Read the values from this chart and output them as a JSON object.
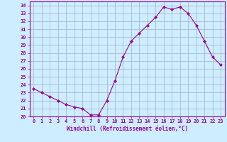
{
  "x": [
    0,
    1,
    2,
    3,
    4,
    5,
    6,
    7,
    8,
    9,
    10,
    11,
    12,
    13,
    14,
    15,
    16,
    17,
    18,
    19,
    20,
    21,
    22,
    23
  ],
  "y": [
    23.5,
    23.0,
    22.5,
    22.0,
    21.5,
    21.2,
    21.0,
    20.2,
    20.2,
    22.0,
    24.5,
    27.5,
    29.5,
    30.5,
    31.5,
    32.5,
    33.8,
    33.5,
    33.8,
    33.0,
    31.5,
    29.5,
    27.5,
    26.5
  ],
  "line_color": "#990099",
  "marker": "D",
  "marker_size": 2,
  "bg_color": "#cceeff",
  "grid_color": "#aaaacc",
  "xlabel": "Windchill (Refroidissement éolien,°C)",
  "ylabel": "",
  "xlim": [
    -0.5,
    23.5
  ],
  "ylim": [
    20,
    34.5
  ],
  "yticks": [
    20,
    21,
    22,
    23,
    24,
    25,
    26,
    27,
    28,
    29,
    30,
    31,
    32,
    33,
    34
  ],
  "xticks": [
    0,
    1,
    2,
    3,
    4,
    5,
    6,
    7,
    8,
    9,
    10,
    11,
    12,
    13,
    14,
    15,
    16,
    17,
    18,
    19,
    20,
    21,
    22,
    23
  ],
  "tick_color": "#990099",
  "axis_color": "#990099",
  "label_fontsize": 5.5,
  "tick_fontsize": 5
}
